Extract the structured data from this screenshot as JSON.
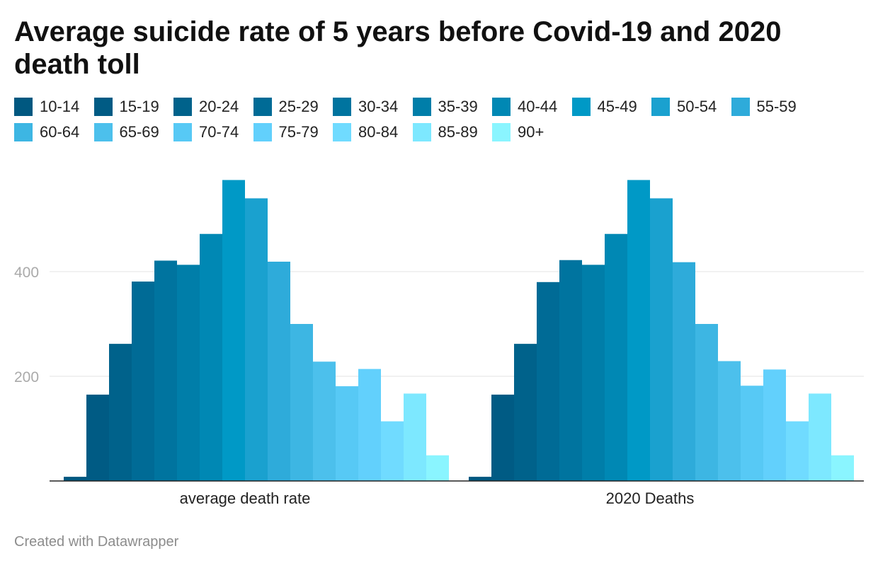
{
  "header": {
    "title": "Average suicide rate of 5 years before Covid-19 and 2020 death toll"
  },
  "footer": {
    "credit": "Created with Datawrapper"
  },
  "chart_data": {
    "type": "bar",
    "title": "Average suicide rate of 5 years before Covid-19 and 2020 death toll",
    "xlabel": "",
    "ylabel": "",
    "categories": [
      "average death rate",
      "2020 Deaths"
    ],
    "ylim": [
      0,
      580
    ],
    "yticks": [
      200,
      400
    ],
    "grid": true,
    "legend_position": "top",
    "series": [
      {
        "name": "10-14",
        "color": "#005880",
        "values": [
          8,
          8
        ]
      },
      {
        "name": "15-19",
        "color": "#005b84",
        "values": [
          165,
          165
        ]
      },
      {
        "name": "20-24",
        "color": "#00628b",
        "values": [
          262,
          262
        ]
      },
      {
        "name": "25-29",
        "color": "#006b96",
        "values": [
          381,
          380
        ]
      },
      {
        "name": "30-34",
        "color": "#00749f",
        "values": [
          421,
          422
        ]
      },
      {
        "name": "35-39",
        "color": "#007ea9",
        "values": [
          413,
          413
        ]
      },
      {
        "name": "40-44",
        "color": "#0088b4",
        "values": [
          472,
          472
        ]
      },
      {
        "name": "45-49",
        "color": "#0099c6",
        "values": [
          575,
          575
        ]
      },
      {
        "name": "50-54",
        "color": "#1aa1cf",
        "values": [
          540,
          540
        ]
      },
      {
        "name": "55-59",
        "color": "#2eabda",
        "values": [
          419,
          418
        ]
      },
      {
        "name": "60-64",
        "color": "#3db6e3",
        "values": [
          300,
          300
        ]
      },
      {
        "name": "65-69",
        "color": "#4cc0ec",
        "values": [
          228,
          229
        ]
      },
      {
        "name": "70-74",
        "color": "#57c9f5",
        "values": [
          181,
          182
        ]
      },
      {
        "name": "75-79",
        "color": "#62d0fc",
        "values": [
          214,
          213
        ]
      },
      {
        "name": "80-84",
        "color": "#70dbff",
        "values": [
          114,
          114
        ]
      },
      {
        "name": "85-89",
        "color": "#7de8ff",
        "values": [
          167,
          167
        ]
      },
      {
        "name": "90+",
        "color": "#8af5ff",
        "values": [
          49,
          49
        ]
      }
    ]
  }
}
